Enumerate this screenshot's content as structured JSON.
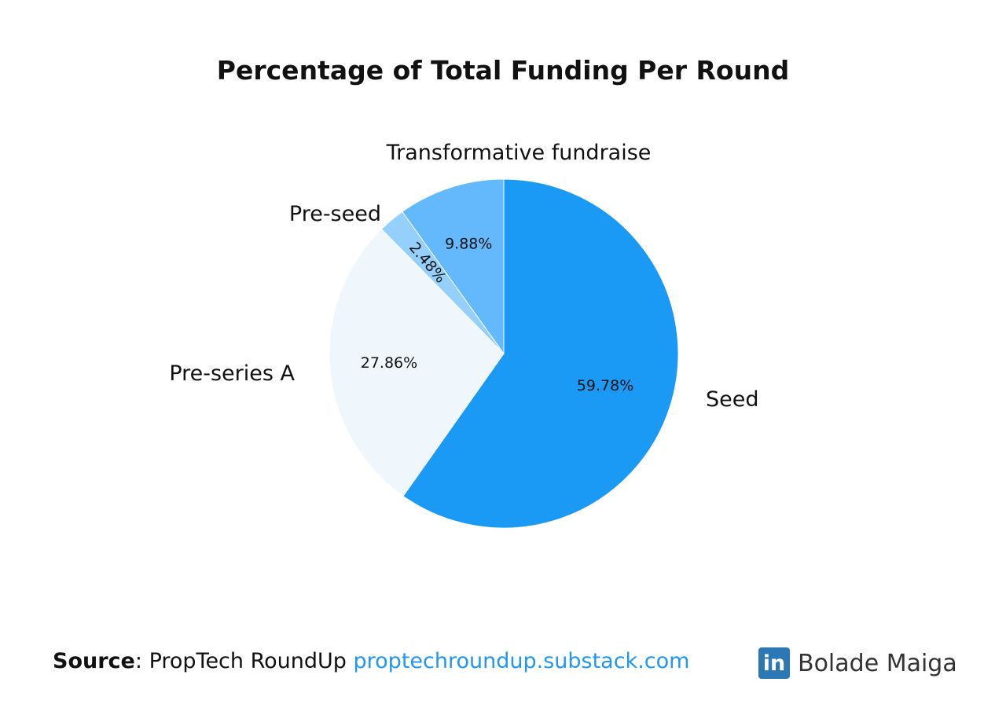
{
  "chart_data": {
    "type": "pie",
    "title": "Percentage of Total Funding Per Round",
    "slices": [
      {
        "label": "Seed",
        "value": 59.78,
        "value_label": "59.78%",
        "color": "#1a99f5"
      },
      {
        "label": "Pre-series A",
        "value": 27.86,
        "value_label": "27.86%",
        "color": "#eff7fd"
      },
      {
        "label": "Pre-seed",
        "value": 2.48,
        "value_label": "2.48%",
        "color": "#94d0fb"
      },
      {
        "label": "Transformative fundraise",
        "value": 9.88,
        "value_label": "9.88%",
        "color": "#63b9fb"
      }
    ],
    "start_direction": "top",
    "direction": "clockwise"
  },
  "footer": {
    "source_label": "Source",
    "source_sep": ":",
    "source_text": "PropTech RoundUp",
    "source_link": "proptechroundup.substack.com"
  },
  "brand": {
    "icon": "linkedin-icon",
    "icon_text": "in",
    "icon_color": "#2b78b5",
    "name": "Bolade Maiga"
  }
}
